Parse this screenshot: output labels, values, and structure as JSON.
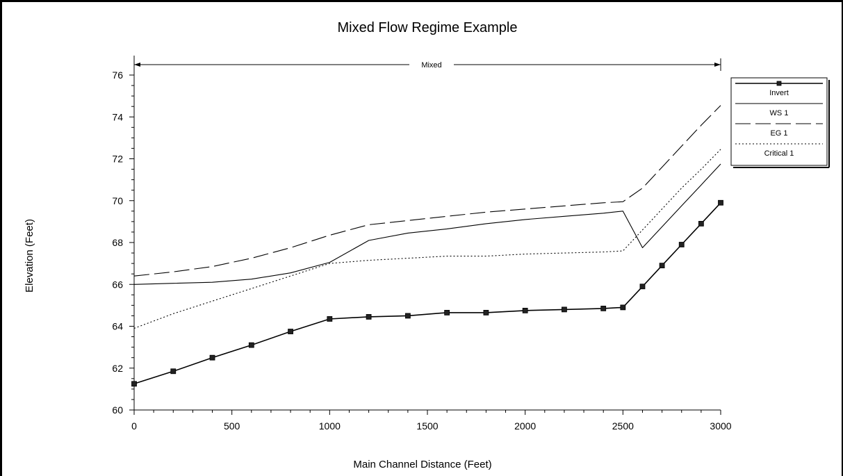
{
  "chart_data": {
    "type": "line",
    "title": "Mixed Flow Regime Example",
    "xlabel": "Main Channel Distance (Feet)",
    "ylabel": "Elevation (Feet)",
    "xlim": [
      0,
      3000
    ],
    "ylim": [
      60,
      76
    ],
    "xticks": [
      0,
      500,
      1000,
      1500,
      2000,
      2500,
      3000
    ],
    "yticks": [
      60,
      62,
      64,
      66,
      68,
      70,
      72,
      74,
      76
    ],
    "x_tick_labels": [
      "0",
      "500",
      "1000",
      "1500",
      "2000",
      "2500",
      "3000"
    ],
    "y_tick_labels": [
      "60",
      "62",
      "64",
      "66",
      "68",
      "70",
      "72",
      "74",
      "76"
    ],
    "grid": false,
    "legend_position": "top-right",
    "regime_annotation": {
      "label": "Mixed",
      "from": 0,
      "to": 3000
    },
    "series": [
      {
        "name": "Invert",
        "style": "solid-markers",
        "color": "#000000",
        "x": [
          0,
          200,
          400,
          600,
          800,
          1000,
          1200,
          1400,
          1600,
          1800,
          2000,
          2200,
          2400,
          2500,
          2600,
          2700,
          2800,
          2900,
          3000
        ],
        "y": [
          61.25,
          61.85,
          62.5,
          63.1,
          63.75,
          64.35,
          64.45,
          64.5,
          64.65,
          64.65,
          64.75,
          64.8,
          64.85,
          64.9,
          65.9,
          66.9,
          67.9,
          68.9,
          69.9
        ]
      },
      {
        "name": "WS 1",
        "style": "solid",
        "color": "#000000",
        "x": [
          0,
          200,
          400,
          600,
          800,
          1000,
          1200,
          1400,
          1600,
          1800,
          2000,
          2200,
          2400,
          2500,
          2600,
          2700,
          2800,
          2900,
          3000
        ],
        "y": [
          66.0,
          66.05,
          66.1,
          66.25,
          66.55,
          67.05,
          68.1,
          68.45,
          68.65,
          68.9,
          69.1,
          69.25,
          69.4,
          69.5,
          67.75,
          68.75,
          69.75,
          70.75,
          71.75
        ]
      },
      {
        "name": "EG 1",
        "style": "dashed",
        "color": "#000000",
        "x": [
          0,
          200,
          400,
          600,
          800,
          1000,
          1200,
          1400,
          1600,
          1800,
          2000,
          2200,
          2400,
          2500,
          2600,
          2700,
          2800,
          2900,
          3000
        ],
        "y": [
          66.4,
          66.6,
          66.85,
          67.25,
          67.75,
          68.35,
          68.85,
          69.05,
          69.25,
          69.45,
          69.6,
          69.75,
          69.9,
          69.95,
          70.6,
          71.6,
          72.6,
          73.6,
          74.55
        ]
      },
      {
        "name": "Critical 1",
        "style": "dotted",
        "color": "#000000",
        "x": [
          0,
          200,
          400,
          600,
          800,
          1000,
          1200,
          1400,
          1600,
          1800,
          2000,
          2200,
          2400,
          2500,
          2600,
          2700,
          2800,
          2900,
          3000
        ],
        "y": [
          63.9,
          64.6,
          65.2,
          65.8,
          66.4,
          67.0,
          67.15,
          67.25,
          67.35,
          67.35,
          67.45,
          67.5,
          67.55,
          67.6,
          68.6,
          69.6,
          70.6,
          71.5,
          72.45
        ]
      }
    ]
  }
}
